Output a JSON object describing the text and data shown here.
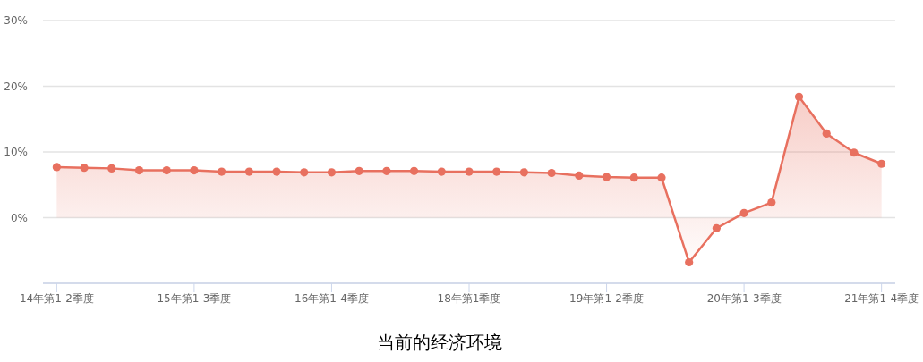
{
  "chart_data": {
    "type": "area",
    "categories": [
      "14年第1-2季度",
      null,
      null,
      null,
      null,
      "15年第1-3季度",
      null,
      null,
      null,
      null,
      "16年第1-4季度",
      null,
      null,
      null,
      null,
      "18年第1季度",
      null,
      null,
      null,
      null,
      "19年第1-2季度",
      null,
      null,
      null,
      null,
      "20年第1-3季度",
      null,
      null,
      null,
      null,
      "21年第1-4季度"
    ],
    "series": [
      {
        "color": "#e8705f",
        "values": [
          7.7,
          7.6,
          7.5,
          7.2,
          7.2,
          7.2,
          7.0,
          7.0,
          7.0,
          6.9,
          6.9,
          7.1,
          7.1,
          7.1,
          7.0,
          7.0,
          7.0,
          6.9,
          6.8,
          6.4,
          6.2,
          6.1,
          6.1,
          -6.8,
          -1.6,
          0.7,
          2.3,
          18.4,
          12.8,
          9.9,
          8.2
        ]
      }
    ],
    "ylim": [
      -10,
      30
    ],
    "yticks": [
      {
        "value": -10,
        "label": null
      },
      {
        "value": 0,
        "label": "0%"
      },
      {
        "value": 10,
        "label": "10%"
      },
      {
        "value": 20,
        "label": "20%"
      },
      {
        "value": 30,
        "label": "30%"
      }
    ],
    "grid": "y",
    "marker": "circle",
    "annotations": [
      "当前的经济环境"
    ]
  }
}
